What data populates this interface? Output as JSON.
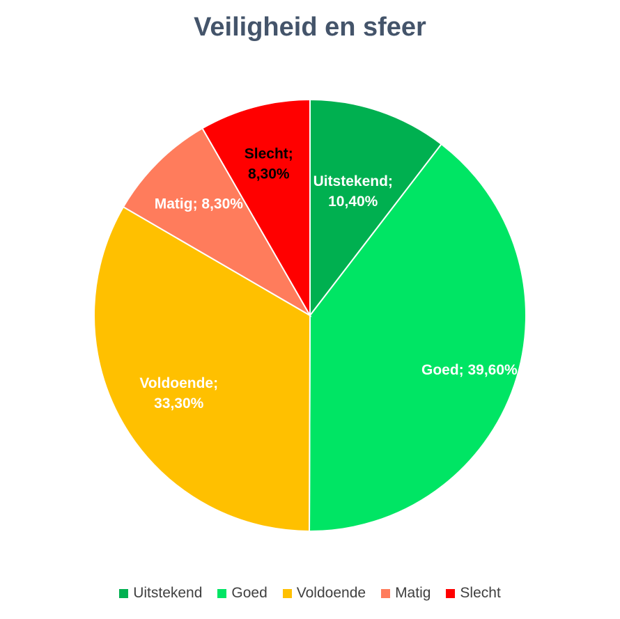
{
  "chart_data": {
    "type": "pie",
    "title": "Veiligheid en sfeer",
    "start_angle": "12 o'clock, clockwise",
    "slices": [
      {
        "label": "Uitstekend",
        "value": 10.4,
        "value_label": "10,40%",
        "color": "#00b050",
        "label_color": "#ffffff"
      },
      {
        "label": "Goed",
        "value": 39.6,
        "value_label": "39,60%",
        "color": "#00e564",
        "label_color": "#ffffff"
      },
      {
        "label": "Voldoende",
        "value": 33.3,
        "value_label": "33,30%",
        "color": "#ffc000",
        "label_color": "#ffffff"
      },
      {
        "label": "Matig",
        "value": 8.3,
        "value_label": "8,30%",
        "color": "#ff7c5c",
        "label_color": "#ffffff"
      },
      {
        "label": "Slecht",
        "value": 8.3,
        "value_label": "8,30%",
        "color": "#ff0000",
        "label_color": "#000000"
      }
    ],
    "legend_position": "bottom"
  }
}
